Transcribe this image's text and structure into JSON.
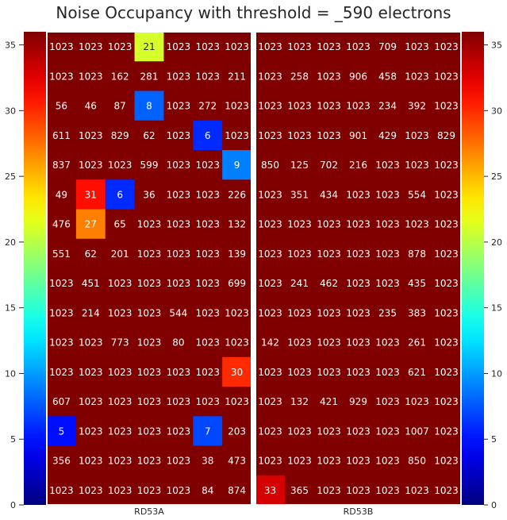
{
  "title": "Noise Occupancy with threshold = _590 electrons",
  "chart_data": {
    "type": "heatmap",
    "colormap": "jet",
    "vmin": 0,
    "vmax": 36,
    "y_ticks": [
      "0",
      "5",
      "10",
      "15",
      "20",
      "25",
      "30",
      "35"
    ],
    "colorbar_ticks": [
      "0",
      "5",
      "10",
      "15",
      "20",
      "25",
      "30",
      "35"
    ],
    "panels": [
      {
        "label": "RD53A",
        "rows": [
          [
            1023,
            1023,
            1023,
            21,
            1023,
            1023,
            1023
          ],
          [
            1023,
            1023,
            162,
            281,
            1023,
            1023,
            211
          ],
          [
            56,
            46,
            87,
            8,
            1023,
            272,
            1023
          ],
          [
            611,
            1023,
            829,
            62,
            1023,
            6,
            1023
          ],
          [
            837,
            1023,
            1023,
            599,
            1023,
            1023,
            9
          ],
          [
            49,
            31,
            6,
            36,
            1023,
            1023,
            226
          ],
          [
            476,
            27,
            65,
            1023,
            1023,
            1023,
            132
          ],
          [
            551,
            62,
            201,
            1023,
            1023,
            1023,
            139
          ],
          [
            1023,
            451,
            1023,
            1023,
            1023,
            1023,
            699
          ],
          [
            1023,
            214,
            1023,
            1023,
            544,
            1023,
            1023
          ],
          [
            1023,
            1023,
            773,
            1023,
            80,
            1023,
            1023
          ],
          [
            1023,
            1023,
            1023,
            1023,
            1023,
            1023,
            30
          ],
          [
            607,
            1023,
            1023,
            1023,
            1023,
            1023,
            1023
          ],
          [
            5,
            1023,
            1023,
            1023,
            1023,
            7,
            203
          ],
          [
            356,
            1023,
            1023,
            1023,
            1023,
            38,
            473
          ],
          [
            1023,
            1023,
            1023,
            1023,
            1023,
            84,
            874
          ]
        ]
      },
      {
        "label": "RD53B",
        "rows": [
          [
            1023,
            1023,
            1023,
            1023,
            709,
            1023,
            1023
          ],
          [
            1023,
            258,
            1023,
            906,
            458,
            1023,
            1023
          ],
          [
            1023,
            1023,
            1023,
            1023,
            234,
            392,
            1023
          ],
          [
            1023,
            1023,
            1023,
            901,
            429,
            1023,
            829
          ],
          [
            850,
            125,
            702,
            216,
            1023,
            1023,
            1023
          ],
          [
            1023,
            351,
            434,
            1023,
            1023,
            554,
            1023
          ],
          [
            1023,
            1023,
            1023,
            1023,
            1023,
            1023,
            1023
          ],
          [
            1023,
            1023,
            1023,
            1023,
            1023,
            878,
            1023
          ],
          [
            1023,
            241,
            462,
            1023,
            1023,
            435,
            1023
          ],
          [
            1023,
            1023,
            1023,
            1023,
            235,
            383,
            1023
          ],
          [
            142,
            1023,
            1023,
            1023,
            1023,
            261,
            1023
          ],
          [
            1023,
            1023,
            1023,
            1023,
            1023,
            621,
            1023
          ],
          [
            1023,
            132,
            421,
            929,
            1023,
            1023,
            1023
          ],
          [
            1023,
            1023,
            1023,
            1023,
            1023,
            1007,
            1023
          ],
          [
            1023,
            1023,
            1023,
            1023,
            1023,
            850,
            1023
          ],
          [
            33,
            365,
            1023,
            1023,
            1023,
            1023,
            1023
          ]
        ]
      }
    ]
  }
}
